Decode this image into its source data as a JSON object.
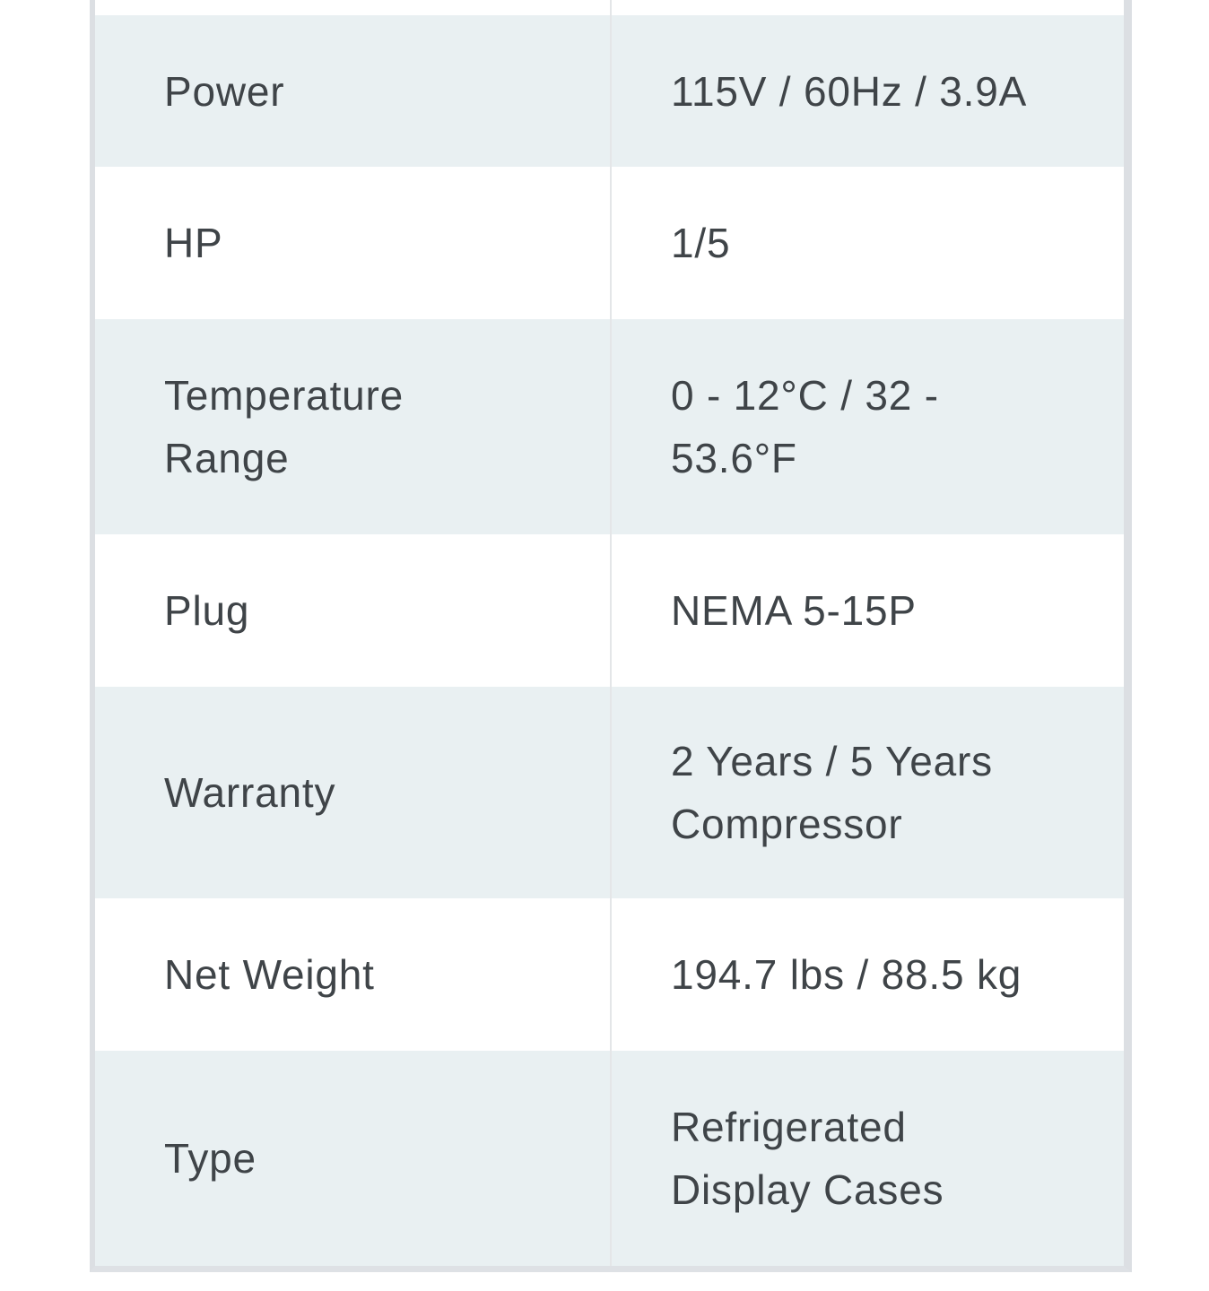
{
  "spec_table": {
    "rows": [
      {
        "label": "Power",
        "value": "115V / 60Hz / 3.9A"
      },
      {
        "label": "HP",
        "value": "1/5"
      },
      {
        "label": "Temperature\nRange",
        "value": "0 - 12°C / 32 -\n53.6°F"
      },
      {
        "label": "Plug",
        "value": "NEMA 5-15P"
      },
      {
        "label": "Warranty",
        "value": "2 Years / 5 Years\nCompressor"
      },
      {
        "label": "Net Weight",
        "value": "194.7 lbs / 88.5 kg"
      },
      {
        "label": "Type",
        "value": "Refrigerated\nDisplay Cases"
      }
    ]
  },
  "colors": {
    "row_shaded": "#e9f0f2",
    "row_white": "#ffffff",
    "frame_border": "#dcdfe3",
    "column_divider": "#e4e6e8",
    "text": "#3f4448"
  }
}
